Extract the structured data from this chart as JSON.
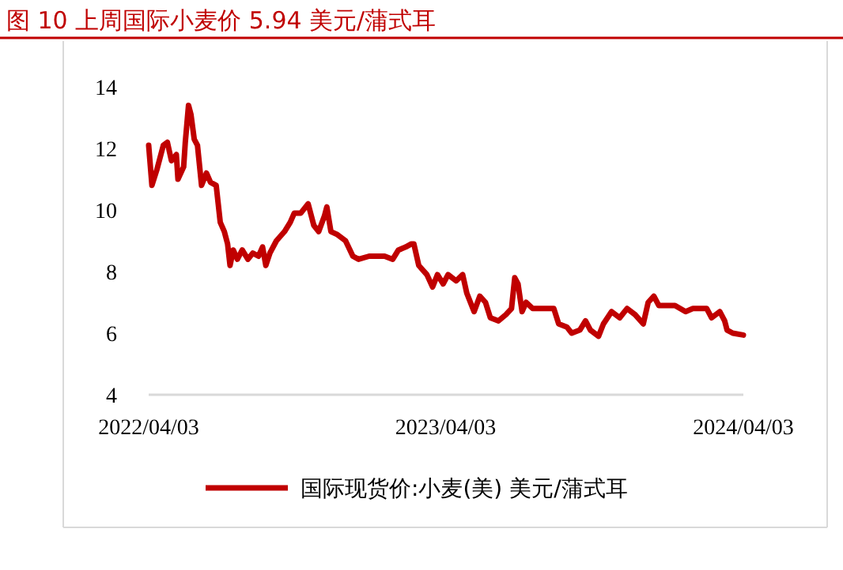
{
  "chart_data": {
    "type": "line",
    "title": "图 10 上周国际小麦价 5.94 美元/蒲式耳",
    "x": [
      "2022-04-03",
      "2022-04-07",
      "2022-04-13",
      "2022-04-21",
      "2022-04-26",
      "2022-05-01",
      "2022-05-07",
      "2022-05-09",
      "2022-05-16",
      "2022-05-18",
      "2022-05-22",
      "2022-05-25",
      "2022-05-29",
      "2022-06-02",
      "2022-06-07",
      "2022-06-13",
      "2022-06-18",
      "2022-06-25",
      "2022-06-30",
      "2022-07-05",
      "2022-07-09",
      "2022-07-12",
      "2022-07-16",
      "2022-07-21",
      "2022-07-27",
      "2022-08-03",
      "2022-08-09",
      "2022-08-16",
      "2022-08-21",
      "2022-08-25",
      "2022-08-30",
      "2022-09-07",
      "2022-09-17",
      "2022-09-24",
      "2022-09-29",
      "2022-10-07",
      "2022-10-16",
      "2022-10-23",
      "2022-10-29",
      "2022-11-05",
      "2022-11-08",
      "2022-11-13",
      "2022-11-21",
      "2022-12-01",
      "2022-12-10",
      "2022-12-17",
      "2022-12-30",
      "2023-01-18",
      "2023-01-28",
      "2023-02-04",
      "2023-02-13",
      "2023-02-20",
      "2023-02-23",
      "2023-03-01",
      "2023-03-11",
      "2023-03-18",
      "2023-03-24",
      "2023-03-31",
      "2023-04-06",
      "2023-04-16",
      "2023-04-24",
      "2023-04-29",
      "2023-05-08",
      "2023-05-15",
      "2023-05-22",
      "2023-05-28",
      "2023-06-07",
      "2023-06-16",
      "2023-06-23",
      "2023-06-27",
      "2023-07-01",
      "2023-07-06",
      "2023-07-11",
      "2023-07-19",
      "2023-08-14",
      "2023-08-20",
      "2023-08-30",
      "2023-09-05",
      "2023-09-15",
      "2023-09-22",
      "2023-09-28",
      "2023-10-08",
      "2023-10-14",
      "2023-10-24",
      "2023-11-03",
      "2023-11-12",
      "2023-11-22",
      "2023-12-02",
      "2023-12-08",
      "2023-12-15",
      "2023-12-21",
      "2024-01-10",
      "2024-01-23",
      "2024-02-01",
      "2024-02-18",
      "2024-02-24",
      "2024-03-05",
      "2024-03-11",
      "2024-03-14",
      "2024-03-21",
      "2024-04-03"
    ],
    "series": [
      {
        "name": "国际现货价:小麦(美) 美元/蒲式耳",
        "color": "#c00000",
        "values": [
          12.1,
          10.8,
          11.3,
          12.1,
          12.2,
          11.6,
          11.8,
          11.0,
          11.4,
          12.2,
          13.4,
          13.1,
          12.3,
          12.1,
          10.8,
          11.2,
          10.9,
          10.8,
          9.6,
          9.3,
          8.9,
          8.2,
          8.7,
          8.4,
          8.7,
          8.4,
          8.6,
          8.5,
          8.8,
          8.2,
          8.6,
          9.0,
          9.3,
          9.6,
          9.9,
          9.9,
          10.2,
          9.5,
          9.3,
          9.8,
          10.1,
          9.3,
          9.2,
          9.0,
          8.5,
          8.4,
          8.5,
          8.5,
          8.4,
          8.7,
          8.8,
          8.9,
          8.9,
          8.2,
          7.9,
          7.5,
          7.9,
          7.6,
          7.9,
          7.7,
          7.9,
          7.3,
          6.7,
          7.2,
          7.0,
          6.5,
          6.4,
          6.6,
          6.8,
          7.8,
          7.6,
          6.7,
          7.0,
          6.8,
          6.8,
          6.3,
          6.2,
          6.0,
          6.1,
          6.4,
          6.1,
          5.9,
          6.3,
          6.7,
          6.5,
          6.8,
          6.6,
          6.3,
          7.0,
          7.2,
          6.9,
          6.9,
          6.7,
          6.8,
          6.8,
          6.5,
          6.7,
          6.4,
          6.1,
          6.0,
          5.94
        ]
      }
    ],
    "xlim": [
      "2022-04-03",
      "2024-04-03"
    ],
    "xticks": [
      {
        "value": "2022-04-03",
        "label": "2022/04/03"
      },
      {
        "value": "2023-04-03",
        "label": "2023/04/03"
      },
      {
        "value": "2024-04-03",
        "label": "2024/04/03"
      }
    ],
    "ylim": [
      4,
      14
    ],
    "yticks": [
      4,
      6,
      8,
      10,
      12,
      14
    ],
    "grid": false,
    "legend": "bottom",
    "marker": "none",
    "line_style": "solid"
  }
}
